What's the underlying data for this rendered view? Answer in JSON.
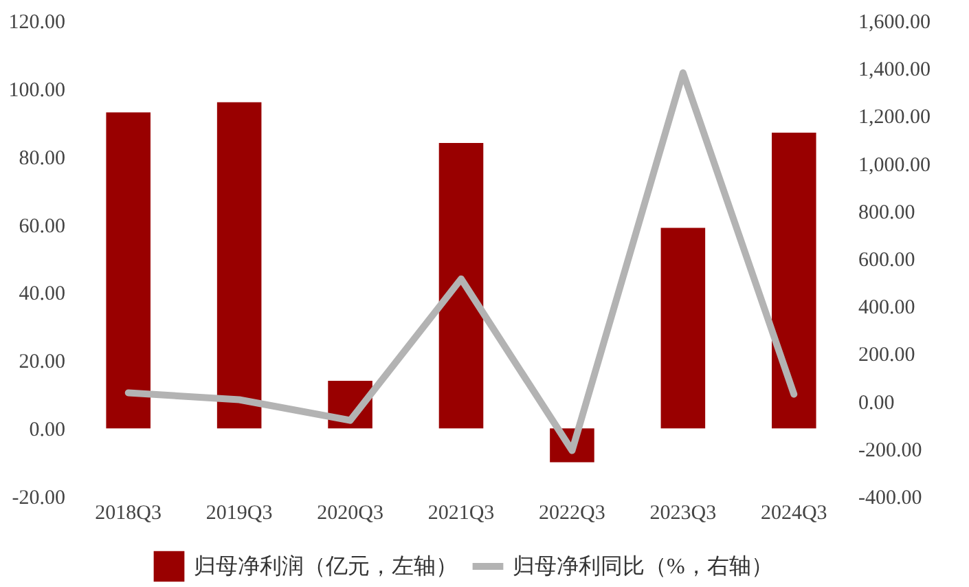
{
  "chart_data": {
    "type": "bar",
    "categories": [
      "2018Q3",
      "2019Q3",
      "2020Q3",
      "2021Q3",
      "2022Q3",
      "2023Q3",
      "2024Q3"
    ],
    "series": [
      {
        "name": "归母净利润（亿元，左轴）",
        "color": "#990000",
        "values": [
          93,
          96,
          14,
          84,
          -10,
          59,
          87
        ]
      },
      {
        "name": "归母净利同比（%，右轴）",
        "color": "#b3b3b3",
        "type": "line",
        "axis": "y2",
        "values": [
          35,
          6,
          -81,
          514,
          -208,
          1381,
          29
        ]
      }
    ],
    "ylim": [
      -20,
      120
    ],
    "yticks": [
      {
        "value": -20,
        "label": "-20.00"
      },
      {
        "value": 0,
        "label": "0.00"
      },
      {
        "value": 20,
        "label": "20.00"
      },
      {
        "value": 40,
        "label": "40.00"
      },
      {
        "value": 60,
        "label": "60.00"
      },
      {
        "value": 80,
        "label": "80.00"
      },
      {
        "value": 100,
        "label": "100.00"
      },
      {
        "value": 120,
        "label": "120.00"
      }
    ],
    "y2lim": [
      -400,
      1600
    ],
    "y2ticks": [
      {
        "value": -400,
        "label": "-400.00"
      },
      {
        "value": -200,
        "label": "-200.00"
      },
      {
        "value": 0,
        "label": "0.00"
      },
      {
        "value": 200,
        "label": "200.00"
      },
      {
        "value": 400,
        "label": "400.00"
      },
      {
        "value": 600,
        "label": "600.00"
      },
      {
        "value": 800,
        "label": "800.00"
      },
      {
        "value": 1000,
        "label": "1,000.00"
      },
      {
        "value": 1200,
        "label": "1,200.00"
      },
      {
        "value": 1400,
        "label": "1,400.00"
      },
      {
        "value": 1600,
        "label": "1,600.00"
      }
    ],
    "grid": false,
    "legend": "bottom"
  }
}
